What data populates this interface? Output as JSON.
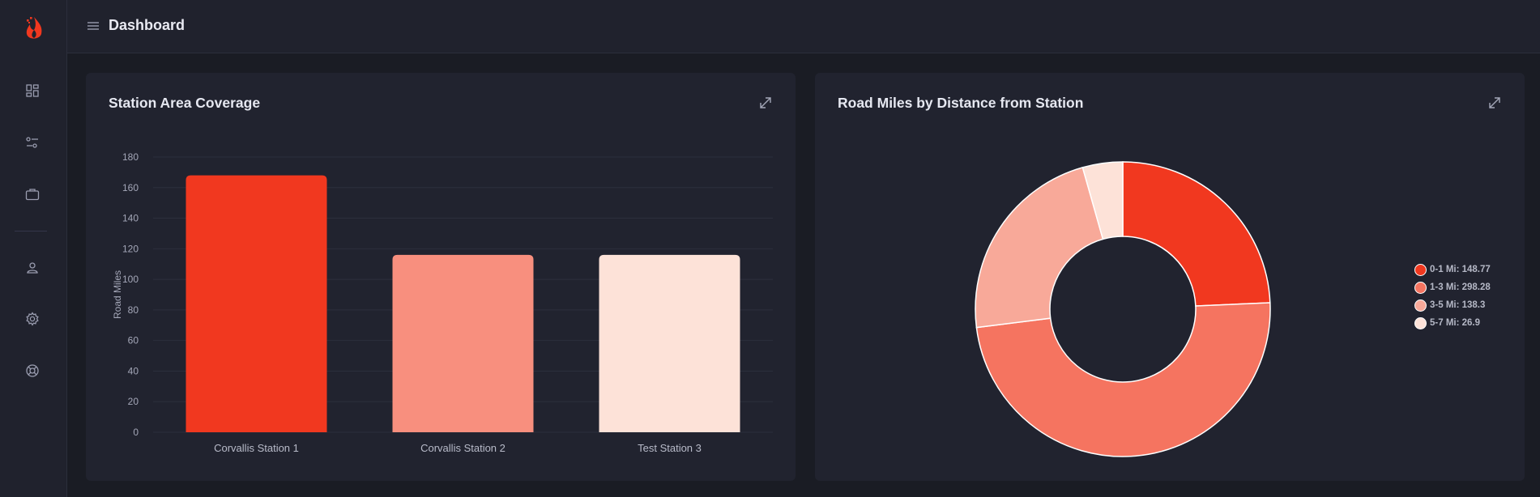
{
  "header": {
    "title": "Dashboard"
  },
  "sidebar": {
    "icons": [
      "flame-logo-icon",
      "dashboard-grid-icon",
      "sliders-icon",
      "briefcase-icon",
      "user-icon",
      "settings-gear-icon",
      "lifebuoy-icon"
    ]
  },
  "colors": {
    "accent": "#f1381f",
    "c1": "#f1381f",
    "c2": "#f57460",
    "c3": "#f8a999",
    "c4": "#fde2d8",
    "bar2": "#f88f7e",
    "bar3": "#fde2d8"
  },
  "chart_data": [
    {
      "type": "bar",
      "title": "Station Area Coverage",
      "categories": [
        "Corvallis Station 1",
        "Corvallis Station 2",
        "Test Station 3"
      ],
      "values": [
        168,
        116,
        116
      ],
      "ylabel": "Road Miles",
      "xlabel": "",
      "ylim": [
        0,
        180
      ],
      "yticks": [
        0,
        20,
        40,
        60,
        80,
        100,
        120,
        140,
        160,
        180
      ],
      "grid": true
    },
    {
      "type": "pie",
      "title": "Road Miles by Distance from Station",
      "labels": [
        "0-1 Mi: 148.77",
        "1-3 Mi: 298.28",
        "3-5 Mi: 138.3",
        "5-7 Mi: 26.9"
      ],
      "values": [
        148.77,
        298.28,
        138.3,
        26.9
      ],
      "legend": "right",
      "donut": true
    }
  ]
}
